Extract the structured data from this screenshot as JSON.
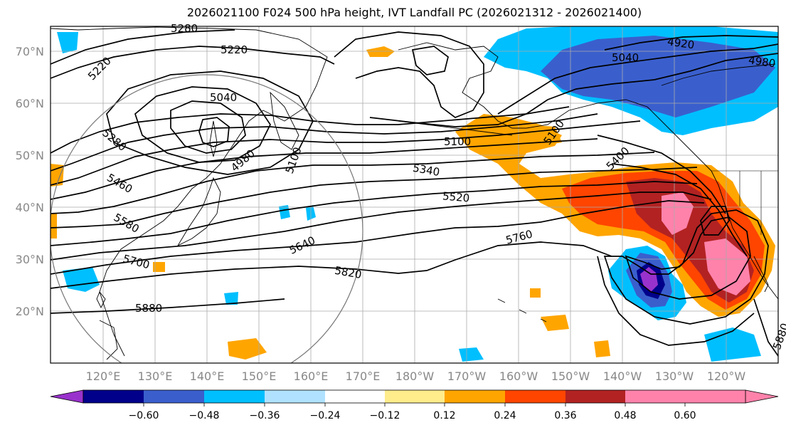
{
  "title": "2026021100 F024 500 hPa height, IVT Landfall PC (2026021312 - 2026021400)",
  "map": {
    "lat_labels": [
      "70°N",
      "60°N",
      "50°N",
      "40°N",
      "30°N",
      "20°N"
    ],
    "lon_labels": [
      "120°E",
      "130°E",
      "140°E",
      "150°E",
      "160°E",
      "170°E",
      "180°W",
      "170°W",
      "160°W",
      "150°W",
      "140°W",
      "130°W",
      "120°W"
    ],
    "contour_labels": [
      "5220",
      "5220",
      "5280",
      "5040",
      "4980",
      "5100",
      "5280",
      "5460",
      "5580",
      "5700",
      "5880",
      "5640",
      "5820",
      "5760",
      "5520",
      "5340",
      "5100",
      "5100",
      "5040",
      "4920",
      "4980",
      "5400",
      "5880"
    ],
    "colors": {
      "neg_060": "#9932cc",
      "neg_048": "#00008b",
      "neg_036": "#3a5fcd",
      "neg_024": "#00bfff",
      "neg_012": "#b0e2ff",
      "pos_012": "#ffec8b",
      "pos_024": "#ffa500",
      "pos_036": "#ff4500",
      "pos_048": "#b22222",
      "pos_060": "#ff82ab"
    }
  },
  "colorbar": {
    "ticks": [
      "−0.60",
      "−0.48",
      "−0.36",
      "−0.24",
      "−0.12",
      "0.12",
      "0.24",
      "0.36",
      "0.48",
      "0.60"
    ],
    "segment_colors": [
      "#9932cc",
      "#00008b",
      "#3a5fcd",
      "#00bfff",
      "#b0e2ff",
      "#ffffff",
      "#ffec8b",
      "#ffa500",
      "#ff4500",
      "#b22222",
      "#ff82ab"
    ]
  }
}
